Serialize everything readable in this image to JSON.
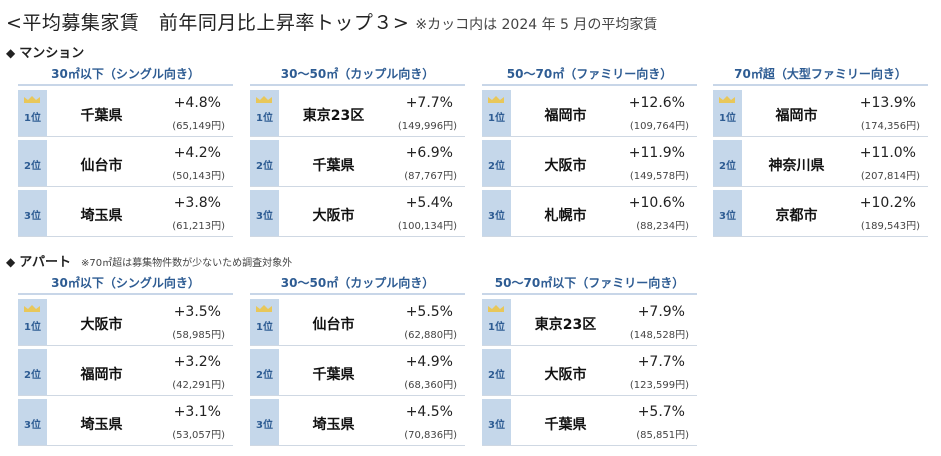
{
  "title": {
    "main": "<平均募集家賃　前年同月比上昇率トップ３>",
    "note": "※カッコ内は 2024 年 5 月の平均家賃"
  },
  "mansion": {
    "heading": "マンション",
    "groups": [
      {
        "title": "30㎡以下（シングル向き）",
        "rows": [
          {
            "rank": "1位",
            "city": "千葉県",
            "rate": "+4.8%",
            "rent": "(65,149円)"
          },
          {
            "rank": "2位",
            "city": "仙台市",
            "rate": "+4.2%",
            "rent": "(50,143円)"
          },
          {
            "rank": "3位",
            "city": "埼玉県",
            "rate": "+3.8%",
            "rent": "(61,213円)"
          }
        ]
      },
      {
        "title": "30～50㎡（カップル向き）",
        "rows": [
          {
            "rank": "1位",
            "city": "東京23区",
            "rate": "+7.7%",
            "rent": "(149,996円)"
          },
          {
            "rank": "2位",
            "city": "千葉県",
            "rate": "+6.9%",
            "rent": "(87,767円)"
          },
          {
            "rank": "3位",
            "city": "大阪市",
            "rate": "+5.4%",
            "rent": "(100,134円)"
          }
        ]
      },
      {
        "title": "50～70㎡（ファミリー向き）",
        "rows": [
          {
            "rank": "1位",
            "city": "福岡市",
            "rate": "+12.6%",
            "rent": "(109,764円)"
          },
          {
            "rank": "2位",
            "city": "大阪市",
            "rate": "+11.9%",
            "rent": "(149,578円)"
          },
          {
            "rank": "3位",
            "city": "札幌市",
            "rate": "+10.6%",
            "rent": "(88,234円)"
          }
        ]
      },
      {
        "title": "70㎡超（大型ファミリー向き）",
        "rows": [
          {
            "rank": "1位",
            "city": "福岡市",
            "rate": "+13.9%",
            "rent": "(174,356円)"
          },
          {
            "rank": "2位",
            "city": "神奈川県",
            "rate": "+11.0%",
            "rent": "(207,814円)"
          },
          {
            "rank": "3位",
            "city": "京都市",
            "rate": "+10.2%",
            "rent": "(189,543円)"
          }
        ]
      }
    ]
  },
  "apart": {
    "heading": "アパート",
    "note": "※70㎡超は募集物件数が少ないため調査対象外",
    "groups": [
      {
        "title": "30㎡以下（シングル向き）",
        "rows": [
          {
            "rank": "1位",
            "city": "大阪市",
            "rate": "+3.5%",
            "rent": "(58,985円)"
          },
          {
            "rank": "2位",
            "city": "福岡市",
            "rate": "+3.2%",
            "rent": "(42,291円)"
          },
          {
            "rank": "3位",
            "city": "埼玉県",
            "rate": "+3.1%",
            "rent": "(53,057円)"
          }
        ]
      },
      {
        "title": "30～50㎡（カップル向き）",
        "rows": [
          {
            "rank": "1位",
            "city": "仙台市",
            "rate": "+5.5%",
            "rent": "(62,880円)"
          },
          {
            "rank": "2位",
            "city": "千葉県",
            "rate": "+4.9%",
            "rent": "(68,360円)"
          },
          {
            "rank": "3位",
            "city": "埼玉県",
            "rate": "+4.5%",
            "rent": "(70,836円)"
          }
        ]
      },
      {
        "title": "50～70㎡以下（ファミリー向き）",
        "rows": [
          {
            "rank": "1位",
            "city": "東京23区",
            "rate": "+7.9%",
            "rent": "(148,528円)"
          },
          {
            "rank": "2位",
            "city": "大阪市",
            "rate": "+7.7%",
            "rent": "(123,599円)"
          },
          {
            "rank": "3位",
            "city": "千葉県",
            "rate": "+5.7%",
            "rent": "(85,851円)"
          }
        ]
      }
    ]
  },
  "colors": {
    "accent": "#2e5c93",
    "rank_bg": "#c5d7ea",
    "crown": "#e8c75a"
  }
}
